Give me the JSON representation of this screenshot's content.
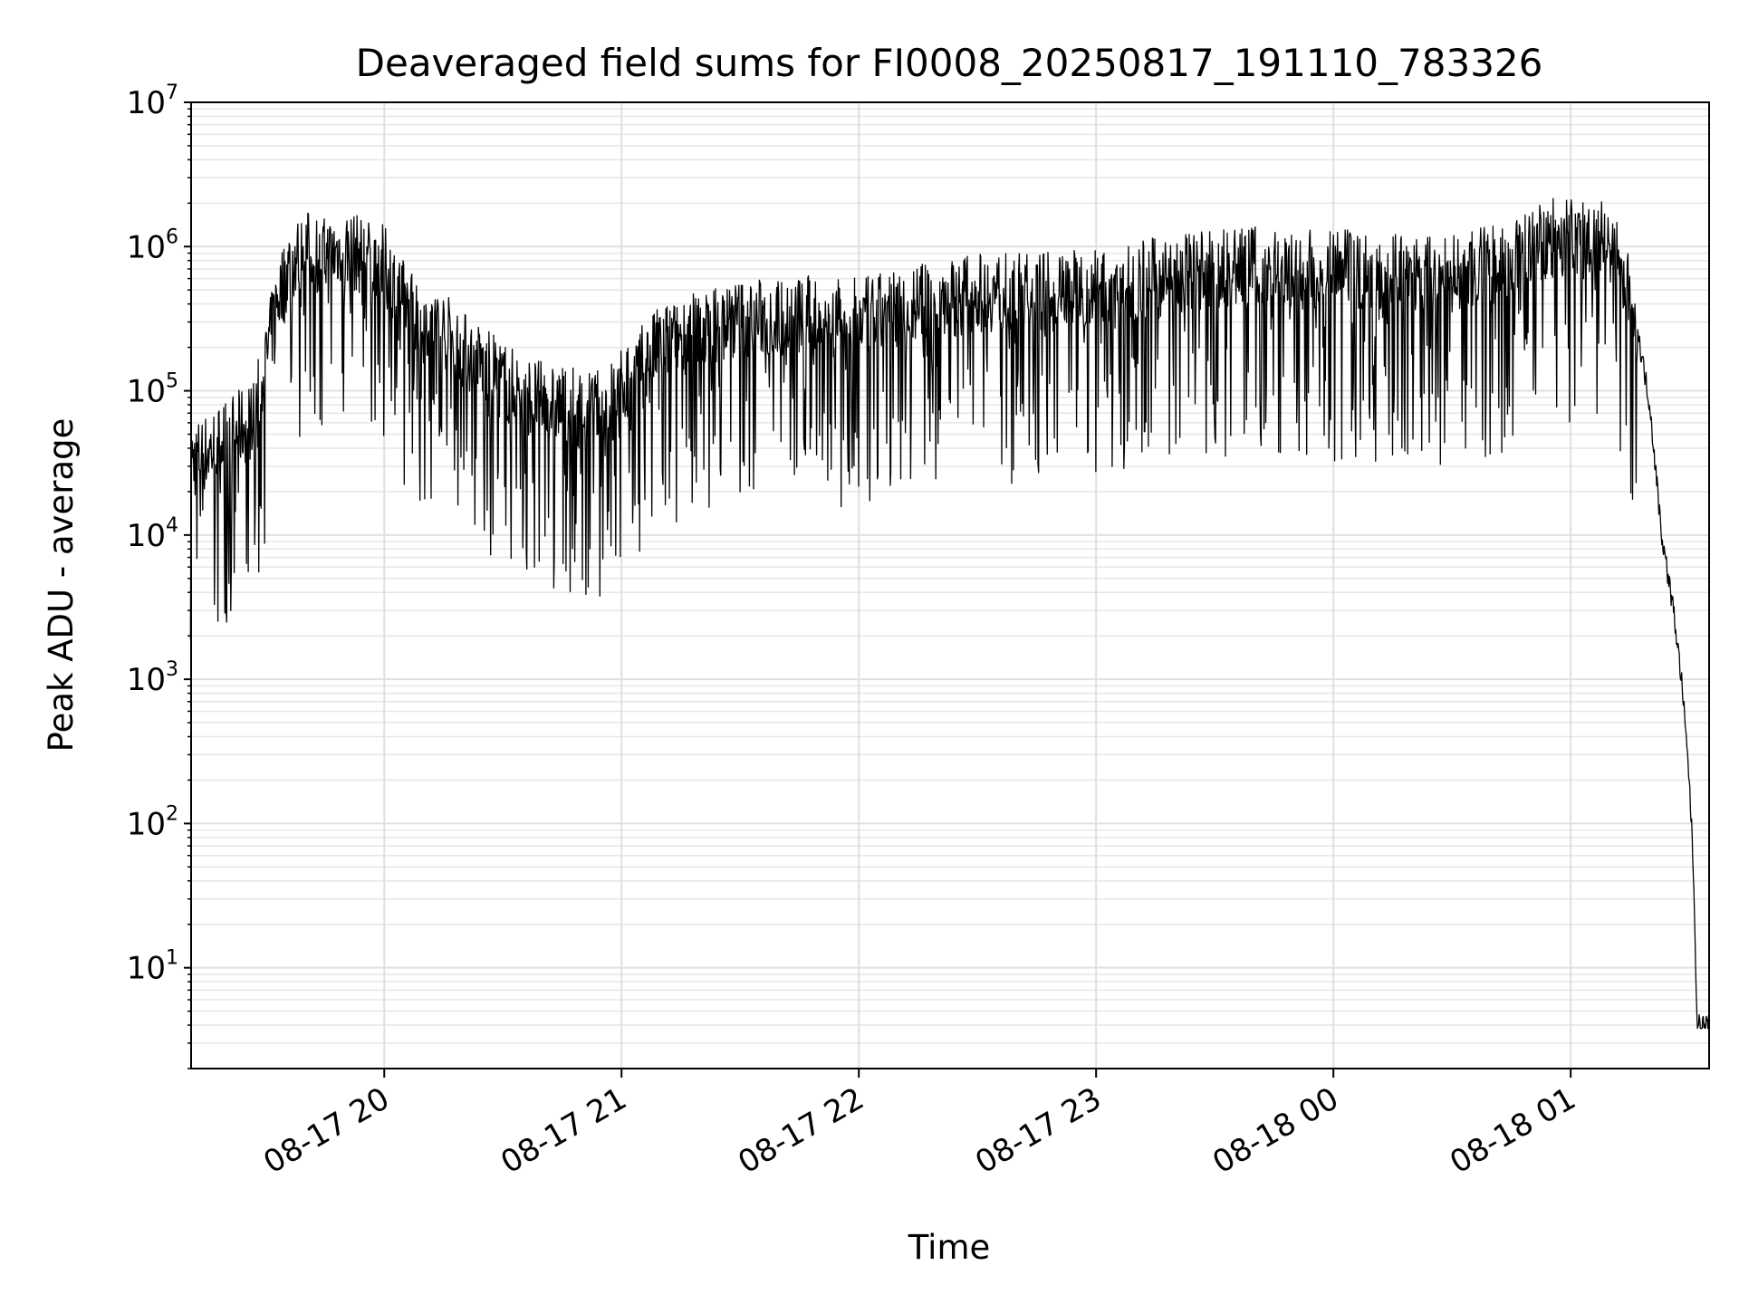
{
  "chart_data": {
    "type": "line",
    "title": "Deaveraged field sums for FI0008_20250817_191110_783326",
    "xlabel": "Time",
    "ylabel": "Peak ADU - average",
    "yscale": "log",
    "ylim": [
      2,
      10000000
    ],
    "xlim": [
      "2025-08-17 19:11:10",
      "2025-08-18 01:35:00"
    ],
    "grid": "on, major and minor",
    "legend": "none",
    "line_color": "#000000",
    "x_ticks": [
      {
        "time": "2025-08-17 20:00",
        "label": "08-17 20"
      },
      {
        "time": "2025-08-17 21:00",
        "label": "08-17 21"
      },
      {
        "time": "2025-08-17 22:00",
        "label": "08-17 22"
      },
      {
        "time": "2025-08-17 23:00",
        "label": "08-17 23"
      },
      {
        "time": "2025-08-18 00:00",
        "label": "08-18 00"
      },
      {
        "time": "2025-08-18 01:00",
        "label": "08-18 01"
      }
    ],
    "y_ticks": [
      {
        "value": 10,
        "base": "10",
        "exp": "1"
      },
      {
        "value": 100,
        "base": "10",
        "exp": "2"
      },
      {
        "value": 1000,
        "base": "10",
        "exp": "3"
      },
      {
        "value": 10000,
        "base": "10",
        "exp": "4"
      },
      {
        "value": 100000,
        "base": "10",
        "exp": "5"
      },
      {
        "value": 1000000,
        "base": "10",
        "exp": "6"
      },
      {
        "value": 10000000,
        "base": "10",
        "exp": "7"
      }
    ],
    "series": [
      {
        "x": [
          "2025-08-17 19:11",
          "2025-08-17 19:15",
          "2025-08-17 19:18",
          "2025-08-17 19:20",
          "2025-08-17 19:23",
          "2025-08-17 19:27",
          "2025-08-17 19:30",
          "2025-08-17 19:33",
          "2025-08-17 19:36",
          "2025-08-17 19:40",
          "2025-08-17 19:45",
          "2025-08-17 19:50",
          "2025-08-17 19:55",
          "2025-08-17 20:00",
          "2025-08-17 20:05",
          "2025-08-17 20:10",
          "2025-08-17 20:15",
          "2025-08-17 20:20",
          "2025-08-17 20:25",
          "2025-08-17 20:30",
          "2025-08-17 20:35",
          "2025-08-17 20:40",
          "2025-08-17 20:45",
          "2025-08-17 20:50",
          "2025-08-17 20:55",
          "2025-08-17 21:00",
          "2025-08-17 21:10",
          "2025-08-17 21:20",
          "2025-08-17 21:30",
          "2025-08-17 21:40",
          "2025-08-17 21:50",
          "2025-08-17 22:00",
          "2025-08-17 22:10",
          "2025-08-17 22:20",
          "2025-08-17 22:30",
          "2025-08-17 22:40",
          "2025-08-17 22:50",
          "2025-08-17 23:00",
          "2025-08-17 23:10",
          "2025-08-17 23:20",
          "2025-08-17 23:30",
          "2025-08-17 23:40",
          "2025-08-17 23:50",
          "2025-08-18 00:00",
          "2025-08-18 00:10",
          "2025-08-18 00:20",
          "2025-08-18 00:30",
          "2025-08-18 00:40",
          "2025-08-18 00:50",
          "2025-08-18 00:55",
          "2025-08-18 01:00",
          "2025-08-18 01:05",
          "2025-08-18 01:10",
          "2025-08-18 01:14",
          "2025-08-18 01:17",
          "2025-08-18 01:20",
          "2025-08-18 01:23",
          "2025-08-18 01:26",
          "2025-08-18 01:28",
          "2025-08-18 01:30",
          "2025-08-18 01:31",
          "2025-08-18 01:32",
          "2025-08-18 01:33",
          "2025-08-18 01:35"
        ],
        "y": [
          30000,
          35000,
          40000,
          45000,
          50000,
          60000,
          150000,
          400000,
          700000,
          900000,
          800000,
          900000,
          800000,
          700000,
          400000,
          300000,
          250000,
          180000,
          140000,
          110000,
          90000,
          80000,
          75000,
          70000,
          70000,
          100000,
          200000,
          250000,
          300000,
          300000,
          320000,
          300000,
          350000,
          400000,
          450000,
          450000,
          470000,
          500000,
          550000,
          600000,
          650000,
          700000,
          650000,
          650000,
          650000,
          600000,
          600000,
          700000,
          900000,
          1100000,
          1100000,
          1100000,
          1000000,
          500000,
          250000,
          80000,
          10000,
          3000,
          1000,
          200,
          50,
          4,
          4,
          4
        ]
      }
    ]
  }
}
